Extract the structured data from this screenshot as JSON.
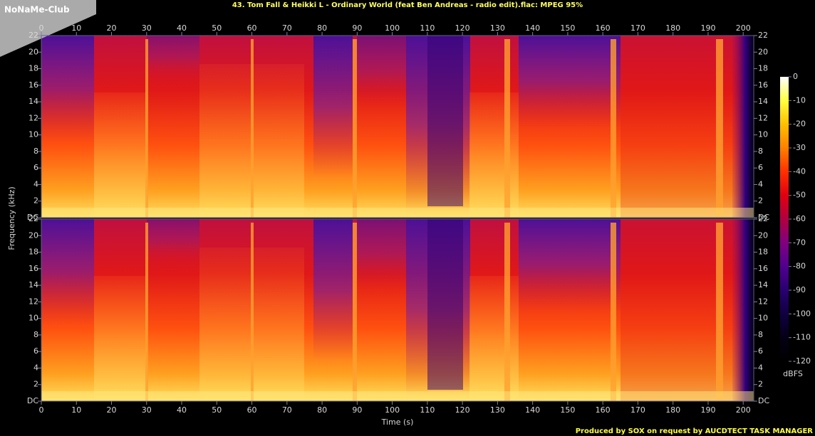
{
  "watermark": "NoNaMe-Club",
  "footer": "Produced by SOX on request by AUCDTECT TASK MANAGER",
  "chart_data": {
    "type": "spectrogram",
    "title": "43. Tom Fall & Heikki L - Ordinary World (feat Ben Andreas - radio edit).flac: MPEG 95%",
    "x_label": "Time (s)",
    "y_label": "Frequency (kHz)",
    "xlim": [
      0,
      203
    ],
    "xticks": [
      0,
      10,
      20,
      30,
      40,
      50,
      60,
      70,
      80,
      90,
      100,
      110,
      120,
      130,
      140,
      150,
      160,
      170,
      180,
      190,
      200
    ],
    "ylim": [
      0,
      22
    ],
    "yticks": [
      {
        "value": 0,
        "label": "DC"
      },
      2,
      4,
      6,
      8,
      10,
      12,
      14,
      16,
      18,
      20,
      22
    ],
    "colorbar": {
      "label": "dBFS",
      "lim": [
        -120,
        0
      ],
      "ticks": [
        0,
        -10,
        -20,
        -30,
        -40,
        -50,
        -60,
        -70,
        -80,
        -90,
        -100,
        -110,
        -120
      ],
      "colors": [
        "#ffffff",
        "#ffff40",
        "#ffc000",
        "#ff8000",
        "#ff3000",
        "#e00010",
        "#b00040",
        "#800080",
        "#500090",
        "#280070",
        "#100040",
        "#050015",
        "#000000"
      ]
    }
  }
}
